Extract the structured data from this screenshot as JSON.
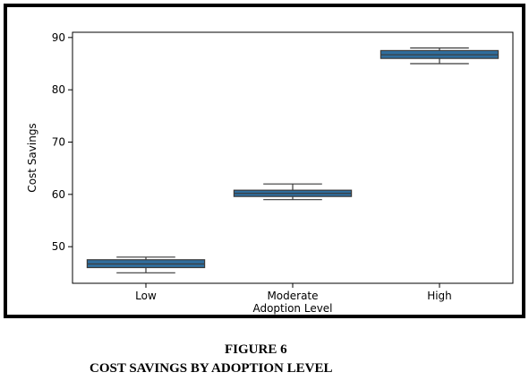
{
  "figure": {
    "number_label": "FIGURE 6",
    "title": "COST SAVINGS BY ADOPTION LEVEL"
  },
  "chart_data": {
    "type": "box",
    "xlabel": "Adoption Level",
    "ylabel": "Cost Savings",
    "categories": [
      "Low",
      "Moderate",
      "High"
    ],
    "ylim": [
      43,
      91
    ],
    "yticks": [
      50,
      60,
      70,
      80,
      90
    ],
    "grid": false,
    "box_color": "#2f6d9c",
    "boxes": [
      {
        "category": "Low",
        "whisker_low": 45,
        "q1": 46,
        "median": 46.7,
        "q3": 47.5,
        "whisker_high": 48
      },
      {
        "category": "Moderate",
        "whisker_low": 59,
        "q1": 59.6,
        "median": 60.2,
        "q3": 60.8,
        "whisker_high": 62
      },
      {
        "category": "High",
        "whisker_low": 85,
        "q1": 86,
        "median": 86.7,
        "q3": 87.5,
        "whisker_high": 88
      }
    ]
  }
}
